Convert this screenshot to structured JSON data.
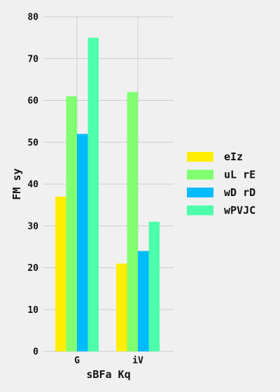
{
  "chart_data": {
    "type": "bar",
    "categories": [
      "G",
      "iV"
    ],
    "series": [
      {
        "name": "eIz",
        "values": [
          37,
          21
        ],
        "color": "#ffee00"
      },
      {
        "name": "uL rE",
        "values": [
          61,
          62
        ],
        "color": "#80ff70"
      },
      {
        "name": "wD rD",
        "values": [
          52,
          24
        ],
        "color": "#00bbff"
      },
      {
        "name": "wPVJC",
        "values": [
          75,
          31
        ],
        "color": "#4dffaa"
      }
    ],
    "title": "",
    "xlabel": "sBFa  Kq",
    "ylabel": "FM sy",
    "ylim": [
      0,
      80
    ],
    "yticks": [
      0,
      10,
      20,
      30,
      40,
      50,
      60,
      70,
      80
    ],
    "grid": true,
    "legend_position": "right",
    "background": "#f0f0f0"
  }
}
